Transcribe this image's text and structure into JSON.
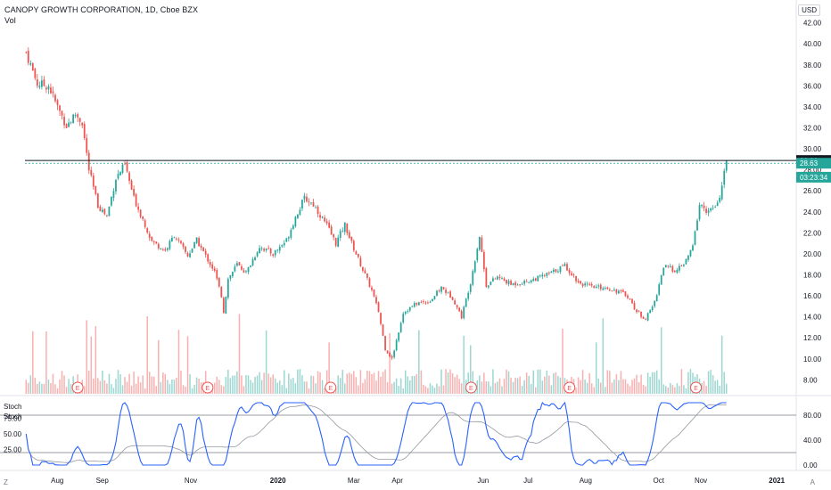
{
  "header": {
    "title": "CANOPY GROWTH CORPORATION, 1D, Cboe BZX",
    "volume_label": "Vol",
    "currency": "USD"
  },
  "corner": {
    "left": "Z",
    "right": "A"
  },
  "colors": {
    "up": "#26a69a",
    "down": "#ef5350",
    "stoch_k": "#2962ff",
    "stoch_d": "#9598a1",
    "hline": "#131722",
    "earnings": "#ef5350"
  },
  "price_axis": {
    "labels": [
      "42.00",
      "40.00",
      "38.00",
      "36.00",
      "34.00",
      "32.00",
      "30.00",
      "28.00",
      "26.00",
      "24.00",
      "22.00",
      "20.00",
      "18.00",
      "16.00",
      "14.00",
      "12.00",
      "10.00",
      "8.00"
    ]
  },
  "price_tags": [
    {
      "value": 28.89,
      "text": "28.89",
      "kind": "hline"
    },
    {
      "value": 28.63,
      "text": "28.63",
      "kind": "last"
    },
    {
      "value": 27.3,
      "text": "03:23:34",
      "kind": "timer"
    }
  ],
  "time_axis": [
    "Aug",
    "Sep",
    "Nov",
    "2020",
    "Mar",
    "Apr",
    "Jun",
    "Jul",
    "Aug",
    "Oct",
    "Nov",
    "2021"
  ],
  "earnings": [
    "E",
    "E",
    "E",
    "E",
    "E",
    "E"
  ],
  "stoch": {
    "labels": [
      "Stoch",
      "Stoch"
    ],
    "axis": [
      "80.00",
      "40.00",
      "0.00"
    ],
    "left_axis": [
      "75.00",
      "50.00",
      "25.00"
    ],
    "upper_band": 80,
    "lower_band": 20
  },
  "chart_data": {
    "type": "candlestick",
    "title": "CANOPY GROWTH CORPORATION, 1D, Cboe BZX",
    "ylim": [
      6.5,
      43.5
    ],
    "horizontal_line": 28.89,
    "last_price": 28.63,
    "anchors": [
      [
        0,
        39.2
      ],
      [
        5,
        36.2
      ],
      [
        10,
        36.0
      ],
      [
        14,
        34.0
      ],
      [
        18,
        32.2
      ],
      [
        22,
        33.3
      ],
      [
        25,
        32.5
      ],
      [
        28,
        28.0
      ],
      [
        32,
        24.6
      ],
      [
        36,
        23.6
      ],
      [
        40,
        27.2
      ],
      [
        44,
        28.5
      ],
      [
        48,
        25.3
      ],
      [
        52,
        23.3
      ],
      [
        56,
        21.2
      ],
      [
        62,
        20.3
      ],
      [
        66,
        21.8
      ],
      [
        72,
        19.8
      ],
      [
        76,
        21.3
      ],
      [
        80,
        19.8
      ],
      [
        84,
        18.3
      ],
      [
        87,
        16.0
      ],
      [
        88,
        14.5
      ],
      [
        90,
        17.6
      ],
      [
        94,
        19.0
      ],
      [
        98,
        18.2
      ],
      [
        104,
        20.7
      ],
      [
        110,
        20.0
      ],
      [
        116,
        21.3
      ],
      [
        120,
        23.5
      ],
      [
        124,
        25.3
      ],
      [
        128,
        24.7
      ],
      [
        134,
        22.7
      ],
      [
        138,
        21.0
      ],
      [
        142,
        22.8
      ],
      [
        145,
        21.0
      ],
      [
        150,
        18.5
      ],
      [
        154,
        16.5
      ],
      [
        157,
        14.5
      ],
      [
        160,
        11.0
      ],
      [
        163,
        10.0
      ],
      [
        168,
        14.4
      ],
      [
        174,
        15.3
      ],
      [
        180,
        15.5
      ],
      [
        185,
        16.8
      ],
      [
        190,
        15.8
      ],
      [
        194,
        14.0
      ],
      [
        198,
        17.3
      ],
      [
        202,
        21.7
      ],
      [
        205,
        17.0
      ],
      [
        210,
        17.8
      ],
      [
        216,
        17.1
      ],
      [
        222,
        17.3
      ],
      [
        228,
        17.7
      ],
      [
        234,
        18.2
      ],
      [
        240,
        18.9
      ],
      [
        246,
        17.3
      ],
      [
        252,
        16.8
      ],
      [
        258,
        16.8
      ],
      [
        264,
        16.4
      ],
      [
        268,
        16.0
      ],
      [
        272,
        14.5
      ],
      [
        276,
        13.8
      ],
      [
        280,
        15.4
      ],
      [
        284,
        18.8
      ],
      [
        290,
        18.4
      ],
      [
        294,
        19.3
      ],
      [
        297,
        20.7
      ],
      [
        300,
        24.7
      ],
      [
        304,
        24.0
      ],
      [
        308,
        24.6
      ],
      [
        312,
        28.6
      ]
    ],
    "volume_ylim": [
      0,
      10
    ],
    "stoch_k_ylim": [
      0,
      100
    ],
    "stoch_note": "oscillator %K (blue) and %D (grey), bands at 20 and 80"
  }
}
